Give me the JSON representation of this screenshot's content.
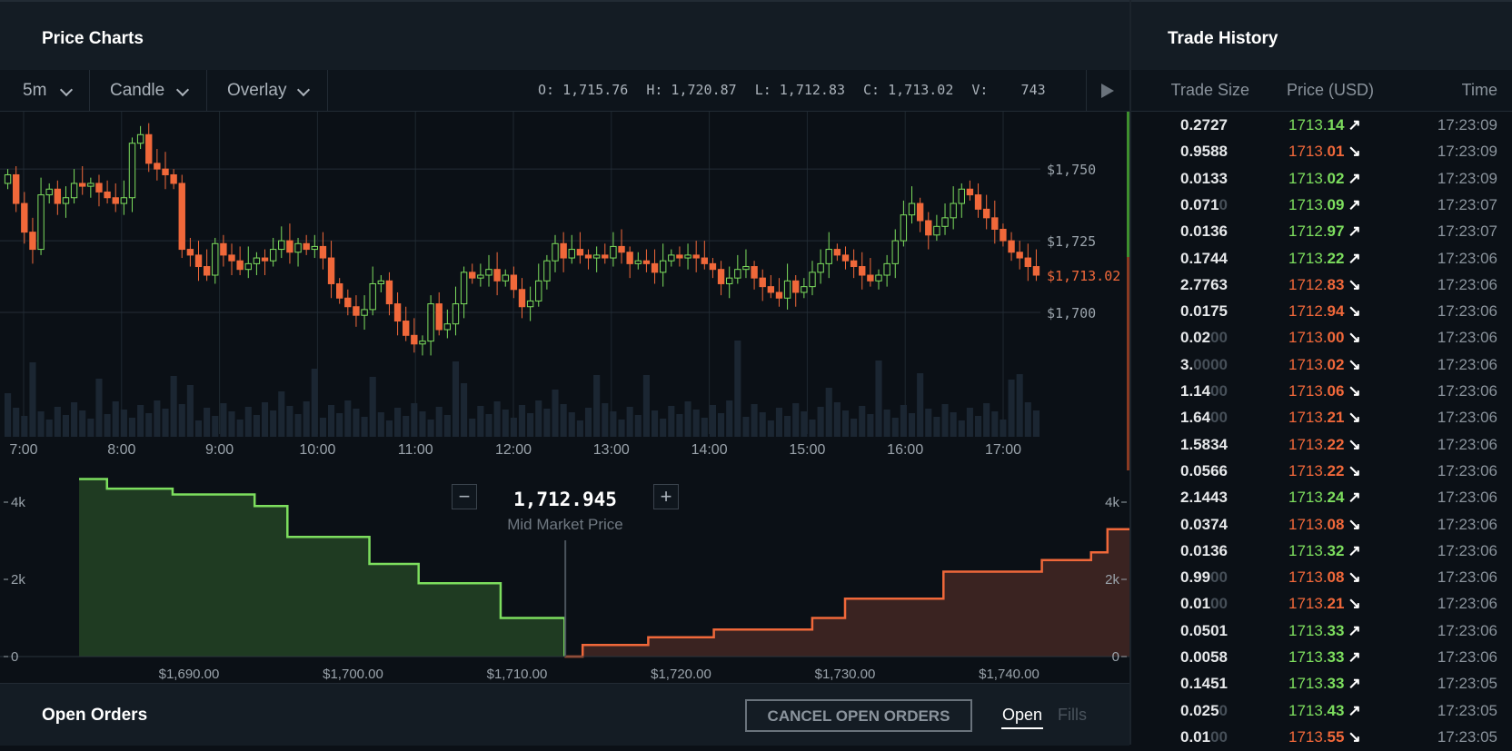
{
  "price_charts": {
    "title": "Price Charts",
    "toolbar": {
      "interval": "5m",
      "chart_type": "Candle",
      "overlay": "Overlay",
      "ohlc": {
        "o": "O: 1,715.76",
        "h": "H: 1,720.87",
        "l": "L: 1,712.83",
        "c": "C: 1,713.02",
        "v": "V:    743"
      }
    },
    "y_ticks": [
      "$1,750",
      "$1,725",
      "$1,700"
    ],
    "current_price_label": "$1,713.02",
    "x_ticks": [
      "7:00",
      "8:00",
      "9:00",
      "10:00",
      "11:00",
      "12:00",
      "13:00",
      "14:00",
      "15:00",
      "16:00",
      "17:00"
    ]
  },
  "chart_data": [
    {
      "type": "candlestick",
      "x_axis": "time",
      "ylim": [
        1675,
        1770
      ],
      "y_ticks": [
        1700,
        1725,
        1750
      ],
      "last_price": 1713.02,
      "close": [
        1748,
        1738,
        1728,
        1722,
        1741,
        1743,
        1738,
        1740,
        1745,
        1744,
        1745,
        1742,
        1740,
        1738,
        1740,
        1759,
        1762,
        1752,
        1750,
        1748,
        1745,
        1722,
        1720,
        1716,
        1713,
        1724,
        1720,
        1718,
        1715,
        1717,
        1719,
        1718,
        1722,
        1725,
        1721,
        1724,
        1722,
        1723,
        1719,
        1710,
        1705,
        1702,
        1699,
        1701,
        1710,
        1711,
        1703,
        1697,
        1692,
        1689,
        1690,
        1703,
        1694,
        1696,
        1703,
        1714,
        1712,
        1713,
        1715,
        1711,
        1713,
        1708,
        1702,
        1704,
        1711,
        1718,
        1724,
        1719,
        1722,
        1720,
        1719,
        1720,
        1719,
        1723,
        1721,
        1717,
        1718,
        1717,
        1714,
        1718,
        1720,
        1719,
        1720,
        1719,
        1717,
        1715,
        1710,
        1712,
        1715,
        1716,
        1712,
        1709,
        1707,
        1705,
        1711,
        1707,
        1709,
        1714,
        1717,
        1722,
        1720,
        1718,
        1716,
        1713,
        1711,
        1713,
        1717,
        1725,
        1734,
        1738,
        1732,
        1727,
        1730,
        1733,
        1738,
        1743,
        1741,
        1736,
        1733,
        1729,
        1725,
        1721,
        1719,
        1716,
        1713
      ],
      "volume_bars": 125
    },
    {
      "type": "depth",
      "mid_price": 1712.945,
      "x_ticks": [
        1690,
        1700,
        1710,
        1720,
        1730,
        1740
      ],
      "y_ticks": [
        0,
        2000,
        4000
      ],
      "bids": [
        [
          1683.3,
          4600
        ],
        [
          1685,
          4350
        ],
        [
          1689,
          4200
        ],
        [
          1694,
          3900
        ],
        [
          1696,
          3100
        ],
        [
          1701,
          2400
        ],
        [
          1704,
          1900
        ],
        [
          1709,
          1000
        ],
        [
          1712.9,
          0
        ]
      ],
      "asks": [
        [
          1712.9,
          0
        ],
        [
          1714,
          300
        ],
        [
          1718,
          500
        ],
        [
          1722,
          700
        ],
        [
          1728,
          1000
        ],
        [
          1730,
          1500
        ],
        [
          1736,
          2200
        ],
        [
          1742,
          2500
        ],
        [
          1745,
          2700
        ],
        [
          1746,
          3300
        ]
      ]
    }
  ],
  "depth": {
    "y_ticks_left": [
      "4k",
      "2k",
      "0"
    ],
    "y_ticks_right": [
      "4k",
      "2k",
      "0"
    ],
    "x_ticks": [
      "$1,690.00",
      "$1,700.00",
      "$1,710.00",
      "$1,720.00",
      "$1,730.00",
      "$1,740.00"
    ],
    "mid_price": "1,712.945",
    "mid_label": "Mid Market Price",
    "minus": "−",
    "plus": "+"
  },
  "open_orders": {
    "title": "Open Orders",
    "cancel_label": "CANCEL OPEN ORDERS",
    "tabs": [
      "Open",
      "Fills"
    ]
  },
  "trade_history": {
    "title": "Trade History",
    "columns": [
      "Trade Size",
      "Price (USD)",
      "Time"
    ],
    "rows": [
      {
        "size": "0.2727",
        "dim": "",
        "p1": "1713.",
        "p2": "14",
        "dir": "up",
        "time": "17:23:09"
      },
      {
        "size": "0.9588",
        "dim": "",
        "p1": "1713.",
        "p2": "01",
        "dir": "dn",
        "time": "17:23:09"
      },
      {
        "size": "0.0133",
        "dim": "",
        "p1": "1713.",
        "p2": "02",
        "dir": "up",
        "time": "17:23:09"
      },
      {
        "size": "0.071",
        "dim": "0",
        "p1": "1713.",
        "p2": "09",
        "dir": "up",
        "time": "17:23:07"
      },
      {
        "size": "0.0136",
        "dim": "",
        "p1": "1712.",
        "p2": "97",
        "dir": "up",
        "time": "17:23:07"
      },
      {
        "size": "0.1744",
        "dim": "",
        "p1": "1713.",
        "p2": "22",
        "dir": "up",
        "time": "17:23:06"
      },
      {
        "size": "2.7763",
        "dim": "",
        "p1": "1712.",
        "p2": "83",
        "dir": "dn",
        "time": "17:23:06"
      },
      {
        "size": "0.0175",
        "dim": "",
        "p1": "1712.",
        "p2": "94",
        "dir": "dn",
        "time": "17:23:06"
      },
      {
        "size": "0.02",
        "dim": "00",
        "p1": "1713.",
        "p2": "00",
        "dir": "dn",
        "time": "17:23:06"
      },
      {
        "size": "3.",
        "dim": "0000",
        "p1": "1713.",
        "p2": "02",
        "dir": "dn",
        "time": "17:23:06"
      },
      {
        "size": "1.14",
        "dim": "00",
        "p1": "1713.",
        "p2": "06",
        "dir": "dn",
        "time": "17:23:06"
      },
      {
        "size": "1.64",
        "dim": "00",
        "p1": "1713.",
        "p2": "21",
        "dir": "dn",
        "time": "17:23:06"
      },
      {
        "size": "1.5834",
        "dim": "",
        "p1": "1713.",
        "p2": "22",
        "dir": "dn",
        "time": "17:23:06"
      },
      {
        "size": "0.0566",
        "dim": "",
        "p1": "1713.",
        "p2": "22",
        "dir": "dn",
        "time": "17:23:06"
      },
      {
        "size": "2.1443",
        "dim": "",
        "p1": "1713.",
        "p2": "24",
        "dir": "up",
        "time": "17:23:06"
      },
      {
        "size": "0.0374",
        "dim": "",
        "p1": "1713.",
        "p2": "08",
        "dir": "dn",
        "time": "17:23:06"
      },
      {
        "size": "0.0136",
        "dim": "",
        "p1": "1713.",
        "p2": "32",
        "dir": "up",
        "time": "17:23:06"
      },
      {
        "size": "0.99",
        "dim": "00",
        "p1": "1713.",
        "p2": "08",
        "dir": "dn",
        "time": "17:23:06"
      },
      {
        "size": "0.01",
        "dim": "00",
        "p1": "1713.",
        "p2": "21",
        "dir": "dn",
        "time": "17:23:06"
      },
      {
        "size": "0.0501",
        "dim": "",
        "p1": "1713.",
        "p2": "33",
        "dir": "up",
        "time": "17:23:06"
      },
      {
        "size": "0.0058",
        "dim": "",
        "p1": "1713.",
        "p2": "33",
        "dir": "up",
        "time": "17:23:06"
      },
      {
        "size": "0.1451",
        "dim": "",
        "p1": "1713.",
        "p2": "33",
        "dir": "up",
        "time": "17:23:05"
      },
      {
        "size": "0.025",
        "dim": "0",
        "p1": "1713.",
        "p2": "43",
        "dir": "up",
        "time": "17:23:05"
      },
      {
        "size": "0.01",
        "dim": "00",
        "p1": "1713.",
        "p2": "55",
        "dir": "dn",
        "time": "17:23:05"
      }
    ],
    "arrow_up": "↗",
    "arrow_down": "↘"
  }
}
